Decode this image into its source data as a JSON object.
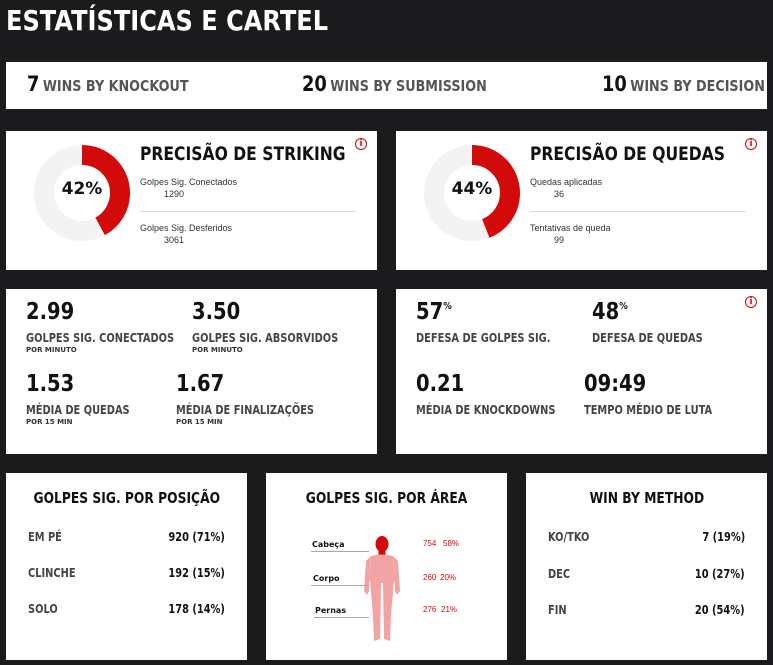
{
  "page": {
    "title": "ESTATÍSTICAS E CARTEL"
  },
  "wins": [
    {
      "num": "7",
      "label": "WINS BY KNOCKOUT"
    },
    {
      "num": "20",
      "label": "WINS BY SUBMISSION"
    },
    {
      "num": "10",
      "label": "WINS BY DECISION"
    }
  ],
  "striking": {
    "title": "PRECISÃO DE STRIKING",
    "pct_text": "42%",
    "pct": 42,
    "row1_label": "Golpes Sig. Conectados",
    "row1_value": "1290",
    "row2_label": "Golpes Sig. Desferidos",
    "row2_value": "3061"
  },
  "takedowns": {
    "title": "PRECISÃO DE QUEDAS",
    "pct_text": "44%",
    "pct": 44,
    "row1_label": "Quedas aplicadas",
    "row1_value": "36",
    "row2_label": "Tentativas de queda",
    "row2_value": "99"
  },
  "stats_left": [
    {
      "value": "2.99",
      "label": "GOLPES SIG. CONECTADOS",
      "sub": "POR MINUTO"
    },
    {
      "value": "3.50",
      "label": "GOLPES SIG. ABSORVIDOS",
      "sub": "POR MINUTO"
    },
    {
      "value": "1.53",
      "label": "MÉDIA DE QUEDAS",
      "sub": "POR 15 MIN"
    },
    {
      "value": "1.67",
      "label": "MÉDIA DE FINALIZAÇÕES",
      "sub": "POR 15 MIN"
    }
  ],
  "stats_right": [
    {
      "value": "57",
      "unit": "%",
      "label": "DEFESA DE GOLPES SIG."
    },
    {
      "value": "48",
      "unit": "%",
      "label": "DEFESA DE QUEDAS"
    },
    {
      "value": "0.21",
      "unit": "",
      "label": "MÉDIA DE KNOCKDOWNS"
    },
    {
      "value": "09:49",
      "unit": "",
      "label": "TEMPO MÉDIO DE LUTA"
    }
  ],
  "position": {
    "title": "GOLPES SIG. POR POSIÇÃO",
    "rows": [
      {
        "label": "EM PÉ",
        "value": "920 (71%)"
      },
      {
        "label": "CLINCHE",
        "value": "192 (15%)"
      },
      {
        "label": "SOLO",
        "value": "178 (14%)"
      }
    ]
  },
  "area": {
    "title": "GOLPES SIG. POR ÁREA",
    "rows": [
      {
        "label": "Cabeça",
        "count": "754",
        "pct": "58%"
      },
      {
        "label": "Corpo",
        "count": "260",
        "pct": "20%"
      },
      {
        "label": "Pernas",
        "count": "276",
        "pct": "21%"
      }
    ]
  },
  "method": {
    "title": "WIN BY METHOD",
    "rows": [
      {
        "label": "KO/TKO",
        "value": "7 (19%)"
      },
      {
        "label": "DEC",
        "value": "10 (27%)"
      },
      {
        "label": "FIN",
        "value": "20 (54%)"
      }
    ]
  },
  "colors": {
    "accent": "#d20a0a",
    "body_fill": "#f2a3a3",
    "head_fill": "#d20a0a",
    "ring_bg": "#f3f3f3"
  },
  "icons": {
    "info": "info-icon"
  }
}
